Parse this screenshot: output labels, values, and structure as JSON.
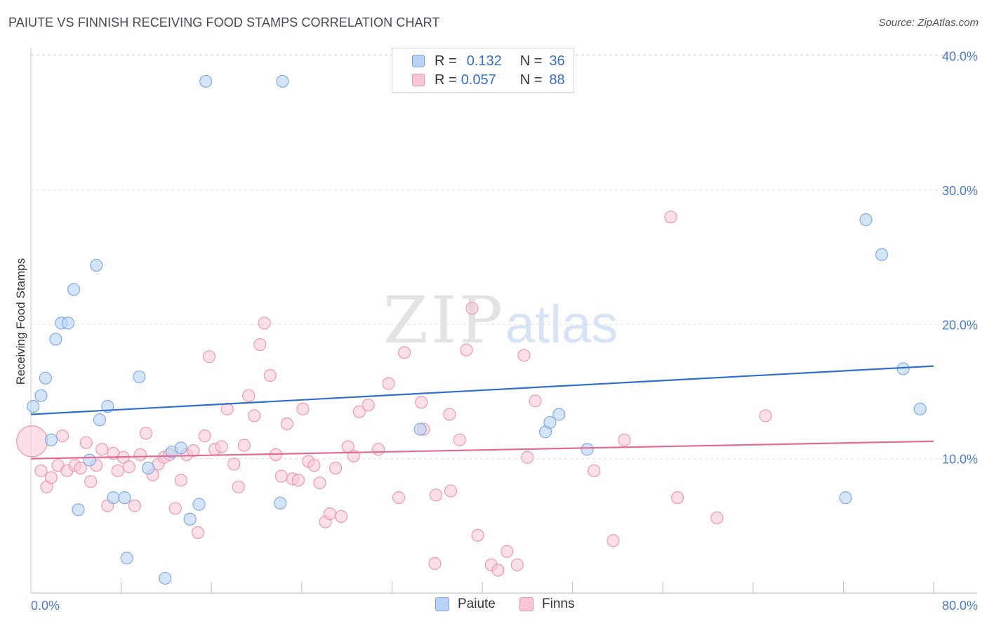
{
  "title": "PAIUTE VS FINNISH RECEIVING FOOD STAMPS CORRELATION CHART",
  "source": "Source: ZipAtlas.com",
  "watermark": {
    "part1": "ZIP",
    "part2": "atlas"
  },
  "legend_stats": [
    {
      "r_label": "R =",
      "r_value": "0.132",
      "n_label": "N =",
      "n_value": "36"
    },
    {
      "r_label": "R =",
      "r_value": "0.057",
      "n_label": "N =",
      "n_value": "88"
    }
  ],
  "colors": {
    "paiute_fill": "#b9d3f5",
    "paiute_stroke": "#7aa6e0",
    "paiute_line": "#2f6fcf",
    "finns_fill": "#f9c6d6",
    "finns_stroke": "#ea8fae",
    "finns_line": "#e36b95",
    "tick": "#4a7cc7",
    "grid": "#dddddd"
  },
  "chart_data": {
    "type": "scatter",
    "title": "PAIUTE VS FINNISH RECEIVING FOOD STAMPS CORRELATION CHART",
    "xlabel": "",
    "ylabel": "Receiving Food Stamps",
    "xlim": [
      0,
      80
    ],
    "ylim": [
      0,
      40.5
    ],
    "x_tick_labels": [
      "0.0%",
      "80.0%"
    ],
    "y_ticks": [
      10,
      20,
      30,
      40
    ],
    "y_tick_labels": [
      "10.0%",
      "20.0%",
      "30.0%",
      "40.0%"
    ],
    "grid": true,
    "legend_position": "bottom",
    "series": [
      {
        "name": "Paiute",
        "trend": {
          "x": [
            0,
            80
          ],
          "y": [
            13.3,
            16.9
          ]
        },
        "points": [
          [
            0.2,
            13.9
          ],
          [
            0.9,
            14.7
          ],
          [
            1.3,
            16.0
          ],
          [
            1.8,
            11.4
          ],
          [
            2.2,
            18.9
          ],
          [
            2.7,
            20.1
          ],
          [
            3.3,
            20.1
          ],
          [
            3.8,
            22.6
          ],
          [
            4.2,
            6.2
          ],
          [
            5.2,
            9.9
          ],
          [
            5.8,
            24.4
          ],
          [
            6.1,
            12.9
          ],
          [
            6.8,
            13.9
          ],
          [
            7.3,
            7.1
          ],
          [
            8.3,
            7.1
          ],
          [
            8.5,
            2.6
          ],
          [
            9.6,
            16.1
          ],
          [
            10.4,
            9.3
          ],
          [
            11.9,
            1.1
          ],
          [
            12.5,
            10.5
          ],
          [
            13.3,
            10.8
          ],
          [
            14.1,
            5.5
          ],
          [
            14.9,
            6.6
          ],
          [
            15.5,
            38.1
          ],
          [
            22.1,
            6.7
          ],
          [
            22.3,
            38.1
          ],
          [
            34.5,
            12.2
          ],
          [
            45.6,
            12.0
          ],
          [
            46.0,
            12.7
          ],
          [
            46.8,
            13.3
          ],
          [
            49.3,
            10.7
          ],
          [
            72.2,
            7.1
          ],
          [
            74.0,
            27.8
          ],
          [
            75.4,
            25.2
          ],
          [
            77.3,
            16.7
          ],
          [
            78.8,
            13.7
          ]
        ]
      },
      {
        "name": "Finns",
        "trend": {
          "x": [
            0,
            80
          ],
          "y": [
            10.0,
            11.3
          ]
        },
        "points": [
          [
            0.1,
            11.3
          ],
          [
            0.9,
            9.1
          ],
          [
            1.4,
            7.9
          ],
          [
            1.8,
            8.6
          ],
          [
            2.4,
            9.5
          ],
          [
            2.8,
            11.7
          ],
          [
            3.2,
            9.1
          ],
          [
            3.9,
            9.5
          ],
          [
            4.4,
            9.3
          ],
          [
            4.9,
            11.2
          ],
          [
            5.3,
            8.3
          ],
          [
            5.8,
            9.5
          ],
          [
            6.3,
            10.7
          ],
          [
            6.8,
            6.5
          ],
          [
            7.3,
            10.4
          ],
          [
            7.7,
            9.1
          ],
          [
            8.2,
            10.1
          ],
          [
            8.7,
            9.4
          ],
          [
            9.2,
            6.5
          ],
          [
            9.7,
            10.3
          ],
          [
            10.2,
            11.9
          ],
          [
            10.8,
            8.8
          ],
          [
            11.3,
            9.6
          ],
          [
            11.8,
            10.1
          ],
          [
            12.3,
            10.3
          ],
          [
            12.8,
            6.3
          ],
          [
            13.3,
            8.4
          ],
          [
            13.8,
            10.3
          ],
          [
            14.4,
            10.6
          ],
          [
            14.8,
            4.5
          ],
          [
            15.4,
            11.7
          ],
          [
            15.8,
            17.6
          ],
          [
            16.3,
            10.7
          ],
          [
            16.9,
            10.9
          ],
          [
            17.4,
            13.7
          ],
          [
            18.0,
            9.6
          ],
          [
            18.4,
            7.9
          ],
          [
            18.9,
            11.0
          ],
          [
            19.3,
            14.7
          ],
          [
            19.8,
            13.2
          ],
          [
            20.3,
            18.5
          ],
          [
            20.7,
            20.1
          ],
          [
            21.2,
            16.2
          ],
          [
            21.7,
            10.3
          ],
          [
            22.2,
            8.7
          ],
          [
            22.7,
            12.6
          ],
          [
            23.2,
            8.5
          ],
          [
            23.7,
            8.4
          ],
          [
            24.1,
            13.7
          ],
          [
            24.6,
            9.8
          ],
          [
            25.1,
            9.5
          ],
          [
            25.6,
            8.2
          ],
          [
            26.1,
            5.3
          ],
          [
            26.5,
            5.9
          ],
          [
            27.0,
            9.3
          ],
          [
            27.5,
            5.7
          ],
          [
            28.1,
            10.9
          ],
          [
            28.6,
            10.2
          ],
          [
            29.1,
            13.5
          ],
          [
            29.9,
            14.0
          ],
          [
            30.8,
            10.7
          ],
          [
            31.7,
            15.6
          ],
          [
            32.6,
            7.1
          ],
          [
            33.1,
            17.9
          ],
          [
            34.6,
            14.2
          ],
          [
            34.8,
            12.2
          ],
          [
            35.8,
            2.2
          ],
          [
            35.9,
            7.3
          ],
          [
            37.1,
            13.3
          ],
          [
            37.2,
            7.6
          ],
          [
            38.0,
            11.4
          ],
          [
            38.6,
            18.1
          ],
          [
            39.1,
            21.2
          ],
          [
            39.6,
            4.3
          ],
          [
            40.8,
            2.1
          ],
          [
            41.4,
            1.7
          ],
          [
            42.2,
            3.1
          ],
          [
            43.1,
            2.1
          ],
          [
            43.7,
            17.7
          ],
          [
            44.0,
            10.1
          ],
          [
            44.7,
            14.3
          ],
          [
            49.9,
            9.1
          ],
          [
            51.6,
            3.9
          ],
          [
            52.6,
            11.4
          ],
          [
            56.7,
            28.0
          ],
          [
            57.3,
            7.1
          ],
          [
            60.8,
            5.6
          ],
          [
            65.1,
            13.2
          ]
        ]
      }
    ]
  },
  "legend": {
    "items": [
      "Paiute",
      "Finns"
    ]
  }
}
